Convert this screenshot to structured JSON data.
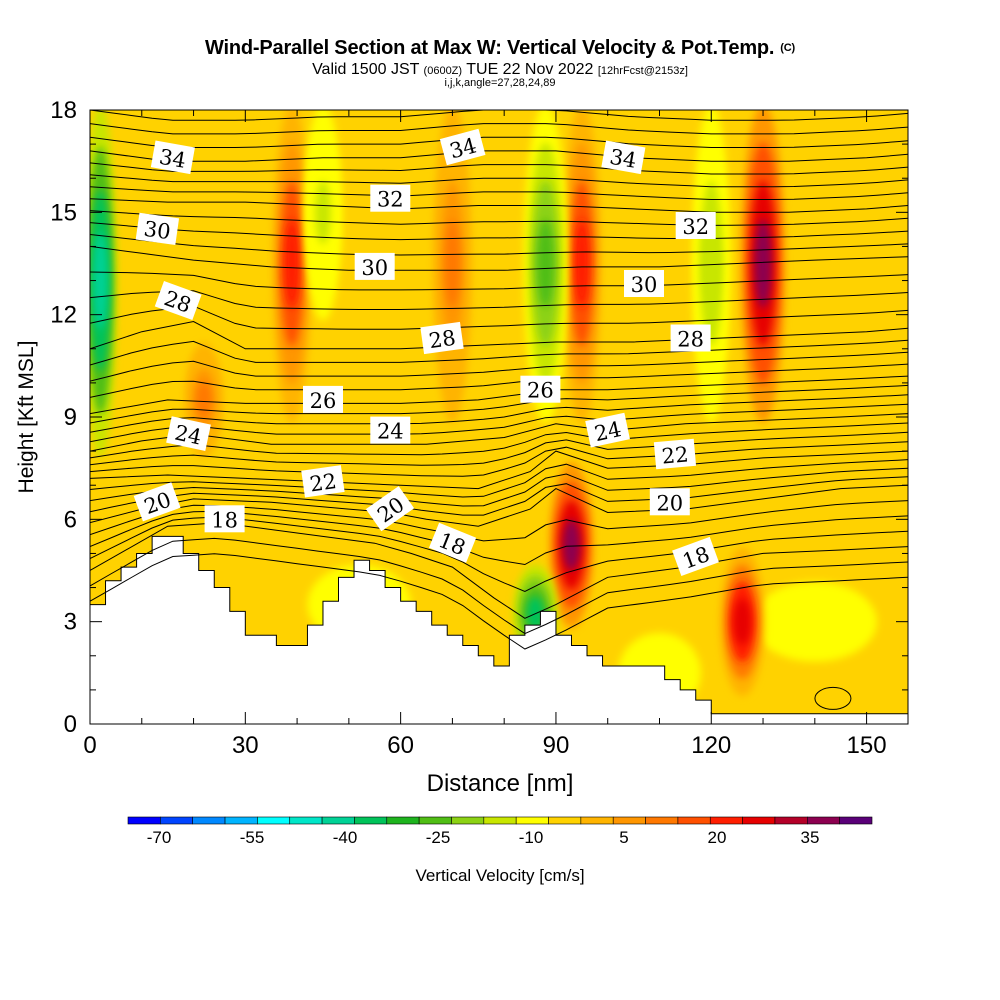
{
  "title": {
    "main": "Wind-Parallel Section at Max W: Vertical Velocity & Pot.Temp.",
    "main_unit": "(C)",
    "valid_prefix": "Valid 1500 JST",
    "valid_utc": "(0600Z)",
    "valid_date": "TUE 22 Nov 2022",
    "valid_fcst": "[12hrFcst@2153z]",
    "indices": "i,j,k,angle=27,28,24,89"
  },
  "chart_data": {
    "type": "heatmap",
    "title": "Wind-Parallel Section at Max W: Vertical Velocity & Pot.Temp.",
    "xlabel": "Distance [nm]",
    "ylabel": "Height [Kft MSL]",
    "xlim": [
      0,
      158
    ],
    "ylim": [
      0,
      18
    ],
    "x_ticks": [
      "0",
      "30",
      "60",
      "90",
      "120",
      "150"
    ],
    "y_ticks": [
      "0",
      "3",
      "6",
      "9",
      "12",
      "15",
      "18"
    ],
    "colorbar": {
      "label": "Vertical Velocity [cm/s]",
      "tick_labels": [
        "-70",
        "-55",
        "-40",
        "-25",
        "-10",
        "5",
        "20",
        "35"
      ],
      "min": -75,
      "max": 45,
      "colors": [
        "#0000ff",
        "#0044ff",
        "#0088ff",
        "#00b4ff",
        "#00ffff",
        "#00e6c8",
        "#00d296",
        "#00c35a",
        "#1eb41e",
        "#50be14",
        "#8cd214",
        "#c8e600",
        "#ffff00",
        "#ffd200",
        "#ffb400",
        "#ff9600",
        "#ff7800",
        "#ff5000",
        "#ff1e00",
        "#e60000",
        "#b40028",
        "#8c0050",
        "#5a0078"
      ]
    },
    "velocity_features": [
      {
        "name": "updraft",
        "x": 39,
        "y_range": [
          9,
          18
        ],
        "w": 22
      },
      {
        "name": "updraft",
        "x": 22,
        "y_range": [
          8,
          11
        ],
        "w": 10
      },
      {
        "name": "updraft",
        "x": 70,
        "y_range": [
          9,
          18
        ],
        "w": 12
      },
      {
        "name": "updraft",
        "x": 93,
        "y_range": [
          3,
          7.5
        ],
        "w": 38
      },
      {
        "name": "updraft",
        "x": 95,
        "y_range": [
          9,
          18
        ],
        "w": 22
      },
      {
        "name": "updraft",
        "x": 126,
        "y_range": [
          1,
          5
        ],
        "w": 30
      },
      {
        "name": "updraft",
        "x": 130,
        "y_range": [
          9,
          18
        ],
        "w": 40
      },
      {
        "name": "downdraft",
        "x": 2,
        "y_range": [
          8,
          18
        ],
        "w": -45
      },
      {
        "name": "downdraft",
        "x": 86,
        "y_range": [
          2,
          4.5
        ],
        "w": -35
      },
      {
        "name": "downdraft",
        "x": 88,
        "y_range": [
          9,
          18
        ],
        "w": -28
      },
      {
        "name": "downdraft",
        "x": 45,
        "y_range": [
          12,
          18
        ],
        "w": -14
      },
      {
        "name": "downdraft",
        "x": 120,
        "y_range": [
          9,
          18
        ],
        "w": -15
      }
    ],
    "terrain": {
      "x": [
        0,
        3,
        3,
        6,
        6,
        9,
        9,
        12,
        12,
        18,
        18,
        21,
        21,
        24,
        24,
        27,
        27,
        30,
        30,
        36,
        36,
        42,
        42,
        45,
        45,
        48,
        48,
        51,
        51,
        54,
        54,
        57,
        57,
        60,
        60,
        63,
        63,
        66,
        66,
        69,
        69,
        72,
        72,
        75,
        75,
        78,
        78,
        81,
        81,
        84,
        84,
        87,
        87,
        90,
        90,
        93,
        93,
        96,
        96,
        99,
        99,
        111,
        111,
        114,
        114,
        117,
        117,
        120,
        120,
        158
      ],
      "h": [
        3.5,
        3.5,
        4.2,
        4.2,
        4.6,
        4.6,
        5.0,
        5.0,
        5.5,
        5.5,
        5.0,
        5.0,
        4.5,
        4.5,
        4.0,
        4.0,
        3.3,
        3.3,
        2.6,
        2.6,
        2.3,
        2.3,
        2.9,
        2.9,
        3.6,
        3.6,
        4.3,
        4.3,
        4.8,
        4.8,
        4.5,
        4.5,
        4.0,
        4.0,
        3.6,
        3.6,
        3.3,
        3.3,
        2.9,
        2.9,
        2.6,
        2.6,
        2.3,
        2.3,
        2.0,
        2.0,
        1.7,
        1.7,
        2.6,
        2.6,
        2.9,
        2.9,
        3.3,
        3.3,
        2.6,
        2.6,
        2.3,
        2.3,
        2.0,
        2.0,
        1.7,
        1.7,
        1.3,
        1.3,
        1.0,
        1.0,
        0.7,
        0.7,
        0.3,
        0.3
      ]
    },
    "theta_isolines": [
      {
        "label": "18",
        "x": [
          0,
          15,
          25,
          40,
          55,
          62,
          70,
          78,
          84,
          90,
          100,
          115,
          130,
          145,
          158
        ],
        "y": [
          4.5,
          5.8,
          5.9,
          5.6,
          5.3,
          5.0,
          4.6,
          3.7,
          3.1,
          3.5,
          4.3,
          4.6,
          5.0,
          5.1,
          5.2
        ],
        "labels_at": [
          {
            "text": "18",
            "x": 26,
            "y": 6.0,
            "rot": 0
          },
          {
            "text": "18",
            "x": 70,
            "y": 5.3,
            "rot": 22
          },
          {
            "text": "18",
            "x": 117,
            "y": 4.9,
            "rot": -20
          }
        ]
      },
      {
        "label": "20",
        "x": [
          0,
          10,
          20,
          35,
          50,
          58,
          65,
          75,
          85,
          90,
          100,
          115,
          130,
          145,
          158
        ],
        "y": [
          5.9,
          6.3,
          6.6,
          6.5,
          6.3,
          6.2,
          6.0,
          5.8,
          6.3,
          6.9,
          6.2,
          6.3,
          6.6,
          6.9,
          7.0
        ],
        "labels_at": [
          {
            "text": "20",
            "x": 13,
            "y": 6.5,
            "rot": -20
          },
          {
            "text": "20",
            "x": 58,
            "y": 6.3,
            "rot": -35
          },
          {
            "text": "20",
            "x": 112,
            "y": 6.5,
            "rot": 0
          }
        ]
      },
      {
        "label": "22",
        "x": [
          0,
          15,
          30,
          45,
          60,
          75,
          85,
          90,
          100,
          115,
          130,
          145,
          158
        ],
        "y": [
          7.2,
          7.3,
          7.2,
          7.1,
          7.0,
          6.9,
          7.4,
          8.0,
          7.5,
          7.6,
          7.8,
          7.9,
          8.0
        ],
        "labels_at": [
          {
            "text": "22",
            "x": 45,
            "y": 7.1,
            "rot": -8
          },
          {
            "text": "22",
            "x": 113,
            "y": 7.9,
            "rot": -5
          }
        ]
      },
      {
        "label": "24",
        "x": [
          0,
          10,
          20,
          35,
          50,
          65,
          80,
          90,
          100,
          115,
          130,
          145,
          158
        ],
        "y": [
          8.0,
          8.3,
          8.5,
          8.2,
          8.2,
          8.2,
          8.4,
          8.8,
          8.6,
          8.8,
          8.9,
          9.0,
          9.1
        ],
        "labels_at": [
          {
            "text": "24",
            "x": 19,
            "y": 8.5,
            "rot": 12
          },
          {
            "text": "24",
            "x": 58,
            "y": 8.6,
            "rot": 0
          },
          {
            "text": "24",
            "x": 100,
            "y": 8.6,
            "rot": -12
          }
        ]
      },
      {
        "label": "26",
        "x": [
          0,
          15,
          30,
          45,
          60,
          75,
          85,
          90,
          100,
          115,
          130,
          145,
          158
        ],
        "y": [
          9.1,
          9.5,
          9.4,
          9.4,
          9.4,
          9.5,
          9.7,
          9.8,
          9.8,
          9.9,
          10.0,
          10.1,
          10.2
        ],
        "labels_at": [
          {
            "text": "26",
            "x": 45,
            "y": 9.5,
            "rot": 0
          },
          {
            "text": "26",
            "x": 87,
            "y": 9.8,
            "rot": 0
          }
        ]
      },
      {
        "label": "28",
        "x": [
          0,
          10,
          20,
          30,
          45,
          60,
          75,
          90,
          105,
          120,
          135,
          150,
          158
        ],
        "y": [
          11.0,
          11.5,
          11.8,
          11.0,
          11.0,
          11.0,
          11.1,
          11.2,
          11.2,
          11.3,
          11.4,
          11.5,
          11.6
        ],
        "labels_at": [
          {
            "text": "28",
            "x": 17,
            "y": 12.4,
            "rot": 20
          },
          {
            "text": "28",
            "x": 68,
            "y": 11.3,
            "rot": -8
          },
          {
            "text": "28",
            "x": 116,
            "y": 11.3,
            "rot": 0
          }
        ]
      },
      {
        "label": "30",
        "x": [
          0,
          10,
          20,
          35,
          50,
          65,
          80,
          95,
          110,
          125,
          140,
          158
        ],
        "y": [
          14.0,
          13.8,
          13.6,
          13.4,
          13.3,
          13.3,
          13.3,
          13.4,
          13.4,
          13.5,
          13.6,
          13.7
        ],
        "labels_at": [
          {
            "text": "30",
            "x": 13,
            "y": 14.5,
            "rot": 8
          },
          {
            "text": "30",
            "x": 55,
            "y": 13.4,
            "rot": 0
          },
          {
            "text": "30",
            "x": 107,
            "y": 12.9,
            "rot": 0
          }
        ]
      },
      {
        "label": "32",
        "x": [
          0,
          15,
          30,
          45,
          60,
          75,
          90,
          105,
          120,
          135,
          150,
          158
        ],
        "y": [
          15.4,
          15.3,
          15.3,
          15.2,
          15.1,
          15.2,
          15.2,
          15.1,
          15.0,
          15.0,
          15.1,
          15.2
        ],
        "labels_at": [
          {
            "text": "32",
            "x": 58,
            "y": 15.4,
            "rot": 0
          },
          {
            "text": "32",
            "x": 117,
            "y": 14.6,
            "rot": 0
          }
        ]
      },
      {
        "label": "34",
        "x": [
          0,
          15,
          30,
          45,
          60,
          75,
          90,
          105,
          120,
          135,
          150,
          158
        ],
        "y": [
          16.8,
          16.5,
          16.5,
          16.6,
          16.6,
          16.8,
          16.8,
          16.6,
          16.5,
          16.5,
          16.6,
          16.7
        ],
        "labels_at": [
          {
            "text": "34",
            "x": 16,
            "y": 16.6,
            "rot": 10
          },
          {
            "text": "34",
            "x": 72,
            "y": 16.9,
            "rot": -15
          },
          {
            "text": "34",
            "x": 103,
            "y": 16.6,
            "rot": 10
          }
        ]
      }
    ]
  }
}
